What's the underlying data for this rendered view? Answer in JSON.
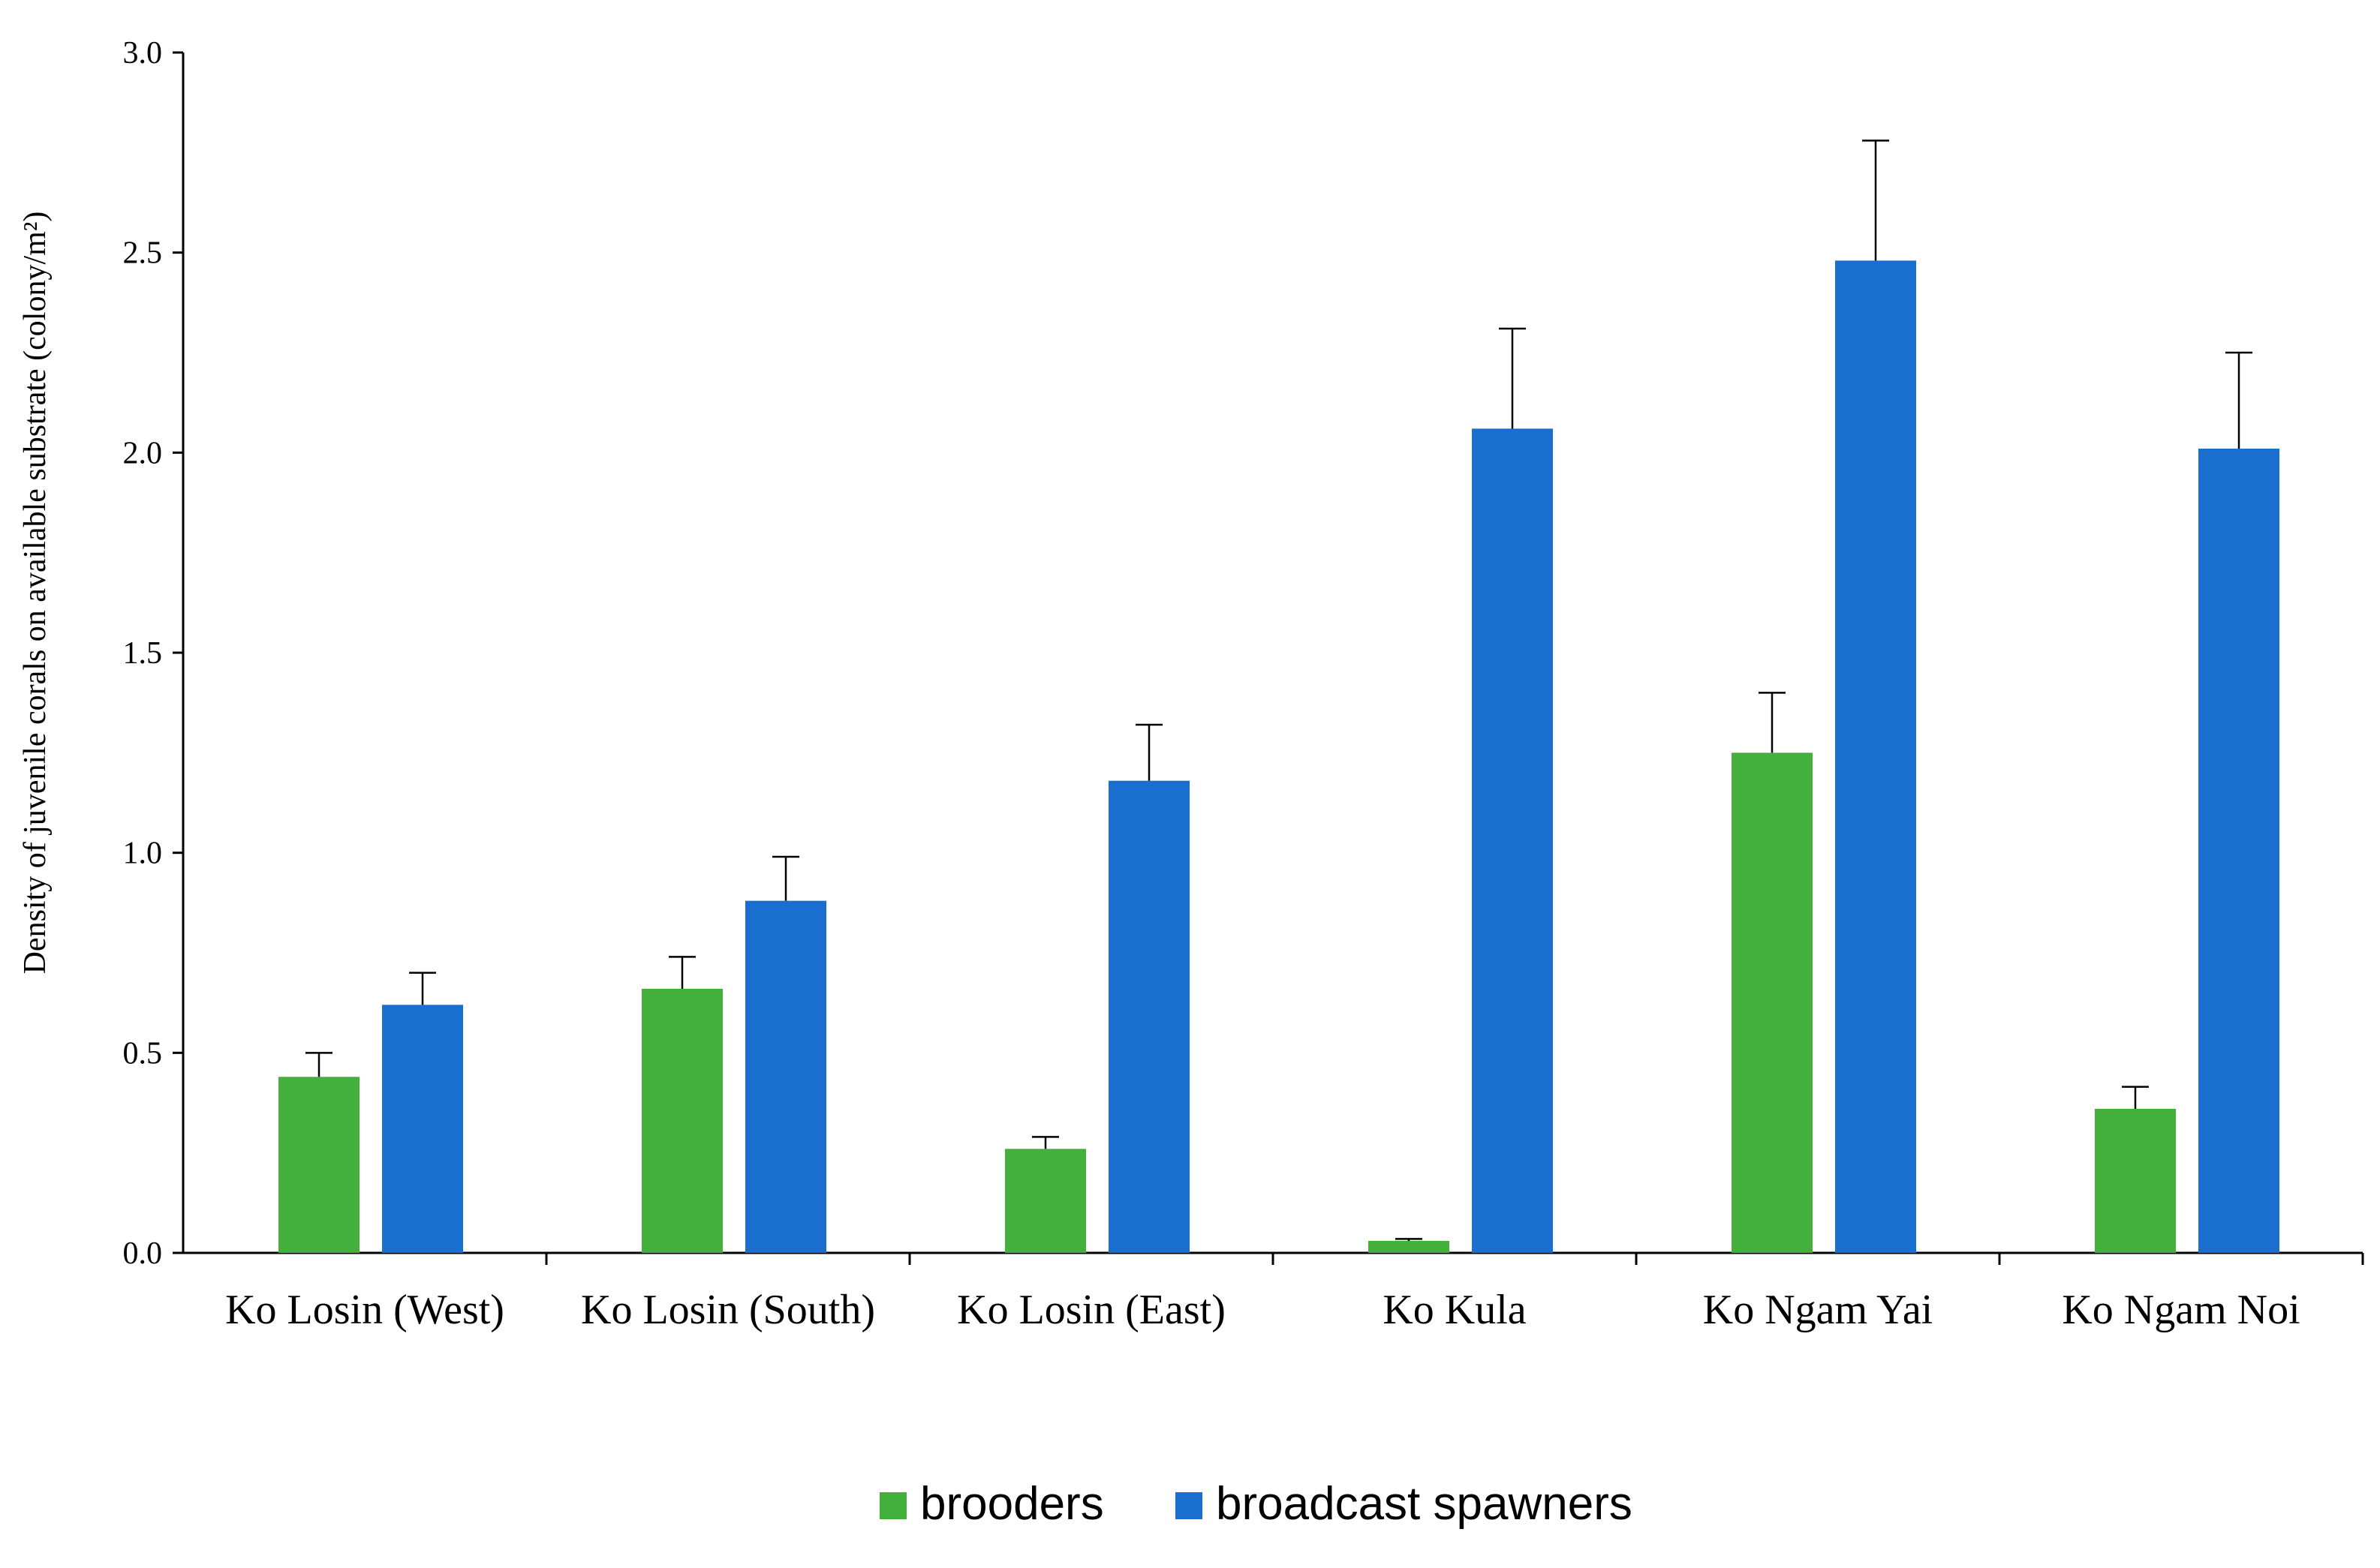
{
  "chart_data": {
    "type": "bar",
    "title": "",
    "xlabel": "",
    "ylabel": "Density of juvenile corals on available substrate (colony/m²)",
    "ylim": [
      0,
      3.0
    ],
    "yticks": [
      "0.0",
      "0.5",
      "1.0",
      "1.5",
      "2.0",
      "2.5",
      "3.0"
    ],
    "categories": [
      "Ko Losin (West)",
      "Ko Losin (South)",
      "Ko Losin (East)",
      "Ko Kula",
      "Ko Ngam Yai",
      "Ko Ngam Noi"
    ],
    "series": [
      {
        "name": "brooders",
        "color": "#44b03c",
        "values": [
          0.44,
          0.66,
          0.26,
          0.03,
          1.25,
          0.36
        ],
        "errors": [
          0.06,
          0.08,
          0.03,
          0.005,
          0.15,
          0.055
        ]
      },
      {
        "name": "broadcast spawners",
        "color": "#1a6fce",
        "values": [
          0.62,
          0.88,
          1.18,
          2.06,
          2.48,
          2.01
        ],
        "errors": [
          0.08,
          0.11,
          0.14,
          0.25,
          0.3,
          0.24
        ]
      }
    ],
    "legend_position": "bottom-center",
    "grid": false
  }
}
